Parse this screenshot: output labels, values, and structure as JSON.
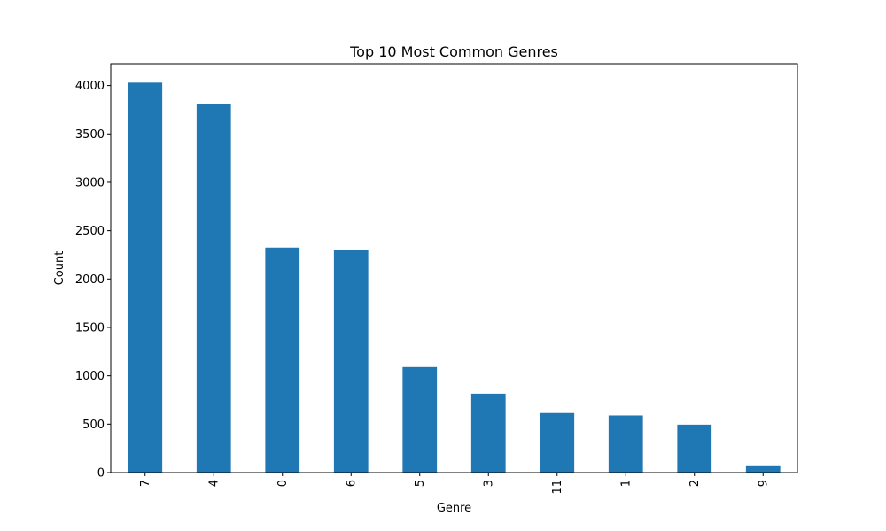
{
  "chart_data": {
    "type": "bar",
    "title": "Top 10 Most Common Genres",
    "xlabel": "Genre",
    "ylabel": "Count",
    "categories": [
      "7",
      "4",
      "0",
      "6",
      "5",
      "3",
      "11",
      "1",
      "2",
      "9"
    ],
    "values": [
      4030,
      3810,
      2325,
      2300,
      1090,
      815,
      615,
      590,
      495,
      75
    ],
    "ylim": [
      0,
      4225
    ],
    "yticks": [
      0,
      500,
      1000,
      1500,
      2000,
      2500,
      3000,
      3500,
      4000
    ],
    "xtick_rotation": "vertical",
    "grid": false,
    "legend": "none",
    "bar_color": "#1f77b4"
  }
}
